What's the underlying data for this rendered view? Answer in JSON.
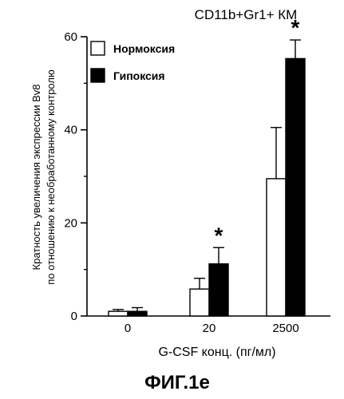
{
  "chart_data": {
    "type": "bar",
    "title": "CD11b+Gr1+ КМ",
    "ylabel_line1": "Кратность увеличения экспрессии Bv8",
    "ylabel_line2": "по отношению к необработанному контролю",
    "xlabel": "G-CSF конц. (пг/мл)",
    "categories": [
      "0",
      "20",
      "2500"
    ],
    "ylim": [
      0,
      60
    ],
    "yticks": [
      0,
      20,
      40,
      60
    ],
    "series": [
      {
        "name": "Нормоксия",
        "fill": "#ffffff",
        "values": [
          1.0,
          5.8,
          29.5
        ],
        "errors": [
          0.4,
          2.3,
          11.0
        ]
      },
      {
        "name": "Гипоксия",
        "fill": "#000000",
        "values": [
          1.0,
          11.2,
          55.3
        ],
        "errors": [
          0.8,
          3.5,
          4.0
        ]
      }
    ],
    "significance": [
      {
        "category": "20",
        "series": "Гипоксия",
        "mark": "*"
      },
      {
        "category": "2500",
        "series": "Гипоксия",
        "mark": "*"
      }
    ],
    "legend_position": "top-left",
    "grid": false
  },
  "figure_label": "ФИГ.1e"
}
